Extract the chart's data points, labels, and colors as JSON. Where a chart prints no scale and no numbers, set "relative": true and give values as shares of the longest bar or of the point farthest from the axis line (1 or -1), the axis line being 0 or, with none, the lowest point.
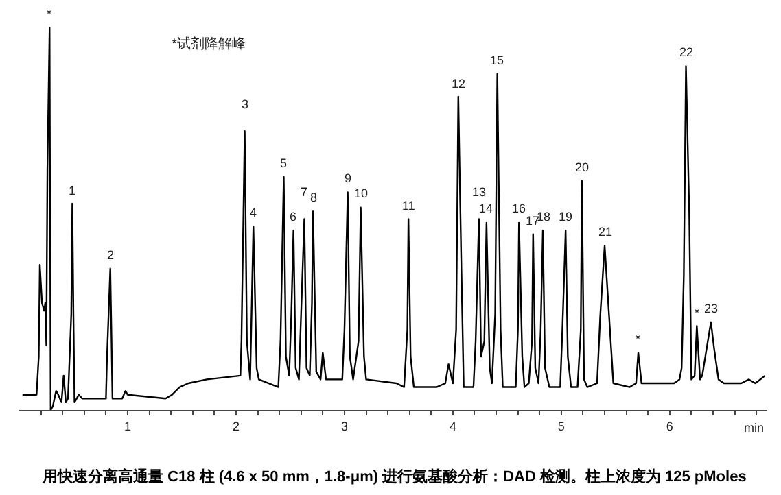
{
  "chart_data": {
    "type": "line",
    "relative": true,
    "xlabel": "min",
    "grid": false,
    "marker": "none",
    "line_style": "solid",
    "xlim": [
      0,
      6.9
    ],
    "xticks": [
      {
        "value": 0.2,
        "label": null
      },
      {
        "value": 0.4,
        "label": null
      },
      {
        "value": 0.6,
        "label": null
      },
      {
        "value": 0.8,
        "label": null
      },
      1,
      {
        "value": 1.2,
        "label": null
      },
      {
        "value": 1.4,
        "label": null
      },
      {
        "value": 1.6,
        "label": null
      },
      {
        "value": 1.8,
        "label": null
      },
      2,
      {
        "value": 2.2,
        "label": null
      },
      {
        "value": 2.4,
        "label": null
      },
      {
        "value": 2.6,
        "label": null
      },
      {
        "value": 2.8,
        "label": null
      },
      3,
      {
        "value": 3.2,
        "label": null
      },
      {
        "value": 3.4,
        "label": null
      },
      {
        "value": 3.6,
        "label": null
      },
      {
        "value": 3.8,
        "label": null
      },
      4,
      {
        "value": 4.2,
        "label": null
      },
      {
        "value": 4.4,
        "label": null
      },
      {
        "value": 4.6,
        "label": null
      },
      {
        "value": 4.8,
        "label": null
      },
      5,
      {
        "value": 5.2,
        "label": null
      },
      {
        "value": 5.4,
        "label": null
      },
      {
        "value": 5.6,
        "label": null
      },
      {
        "value": 5.8,
        "label": null
      },
      6,
      {
        "value": 6.2,
        "label": null
      },
      {
        "value": 6.4,
        "label": null
      },
      {
        "value": 6.6,
        "label": null
      },
      {
        "value": 6.8,
        "label": null
      }
    ],
    "x": [
      0.03,
      0.16,
      0.18,
      0.19,
      0.21,
      0.23,
      0.24,
      0.25,
      0.26,
      0.28,
      0.29,
      0.31,
      0.34,
      0.36,
      0.39,
      0.41,
      0.43,
      0.45,
      0.48,
      0.49,
      0.5,
      0.51,
      0.55,
      0.58,
      0.73,
      0.8,
      0.81,
      0.84,
      0.85,
      0.86,
      0.95,
      0.98,
      1.0,
      1.35,
      1.41,
      1.48,
      1.56,
      1.73,
      2.04,
      2.05,
      2.08,
      2.1,
      2.13,
      2.14,
      2.16,
      2.19,
      2.21,
      2.39,
      2.41,
      2.44,
      2.46,
      2.49,
      2.51,
      2.53,
      2.55,
      2.58,
      2.6,
      2.63,
      2.65,
      2.68,
      2.7,
      2.71,
      2.74,
      2.78,
      2.8,
      2.83,
      2.98,
      3.0,
      3.03,
      3.05,
      3.08,
      3.13,
      3.15,
      3.18,
      3.2,
      3.48,
      3.55,
      3.58,
      3.59,
      3.61,
      3.64,
      3.85,
      3.93,
      3.96,
      4.0,
      4.03,
      4.05,
      4.08,
      4.1,
      4.19,
      4.21,
      4.24,
      4.26,
      4.29,
      4.31,
      4.34,
      4.36,
      4.39,
      4.41,
      4.44,
      4.46,
      4.58,
      4.6,
      4.61,
      4.64,
      4.66,
      4.7,
      4.73,
      4.74,
      4.76,
      4.79,
      4.81,
      4.83,
      4.85,
      4.89,
      4.99,
      5.01,
      5.04,
      5.06,
      5.09,
      5.15,
      5.18,
      5.19,
      5.21,
      5.24,
      5.33,
      5.36,
      5.4,
      5.44,
      5.48,
      5.63,
      5.69,
      5.71,
      5.74,
      6.04,
      6.09,
      6.11,
      6.13,
      6.15,
      6.18,
      6.2,
      6.23,
      6.25,
      6.28,
      6.3,
      6.34,
      6.38,
      6.41,
      6.45,
      6.5,
      6.66,
      6.73,
      6.79,
      6.88
    ],
    "series": [
      {
        "color": "#000000",
        "values": [
          0.04,
          0.04,
          0.14,
          0.38,
          0.28,
          0.26,
          0.28,
          0.17,
          0.63,
          1.0,
          0,
          0.01,
          0.05,
          0.04,
          0.02,
          0.09,
          0.02,
          0.03,
          0.25,
          0.54,
          0.25,
          0.02,
          0.04,
          0.03,
          0.03,
          0.03,
          0.14,
          0.37,
          0.21,
          0.03,
          0.03,
          0.05,
          0.04,
          0.03,
          0.04,
          0.06,
          0.07,
          0.08,
          0.09,
          0.18,
          0.73,
          0.18,
          0.08,
          0.21,
          0.48,
          0.11,
          0.08,
          0.06,
          0.18,
          0.61,
          0.14,
          0.09,
          0.25,
          0.47,
          0.11,
          0.08,
          0.25,
          0.5,
          0.11,
          0.09,
          0.28,
          0.52,
          0.1,
          0.08,
          0.15,
          0.08,
          0.08,
          0.21,
          0.57,
          0.14,
          0.08,
          0.18,
          0.53,
          0.14,
          0.08,
          0.07,
          0.06,
          0.21,
          0.5,
          0.14,
          0.06,
          0.06,
          0.07,
          0.12,
          0.07,
          0.21,
          0.82,
          0.35,
          0.06,
          0.06,
          0.18,
          0.5,
          0.14,
          0.18,
          0.49,
          0.11,
          0.07,
          0.25,
          0.88,
          0.21,
          0.06,
          0.06,
          0.21,
          0.49,
          0.14,
          0.06,
          0.07,
          0.18,
          0.46,
          0.11,
          0.07,
          0.21,
          0.47,
          0.11,
          0.06,
          0.06,
          0.21,
          0.47,
          0.14,
          0.06,
          0.06,
          0.21,
          0.6,
          0.08,
          0.06,
          0.07,
          0.25,
          0.43,
          0.25,
          0.07,
          0.06,
          0.07,
          0.15,
          0.07,
          0.07,
          0.08,
          0.11,
          0.35,
          0.9,
          0.52,
          0.08,
          0.09,
          0.22,
          0.08,
          0.09,
          0.16,
          0.23,
          0.16,
          0.08,
          0.07,
          0.07,
          0.08,
          0.07,
          0.09
        ]
      }
    ],
    "annotations": [
      "*试剂降解峰",
      {
        "text": "*",
        "x": 0.28,
        "y": 1.0
      },
      {
        "text": "1",
        "x": 0.49,
        "y": 0.54
      },
      {
        "text": "2",
        "x": 0.84,
        "y": 0.37
      },
      {
        "text": "3",
        "x": 2.08,
        "y": 0.73
      },
      {
        "text": "4",
        "x": 2.16,
        "y": 0.48
      },
      {
        "text": "5",
        "x": 2.44,
        "y": 0.61
      },
      {
        "text": "6",
        "x": 2.53,
        "y": 0.47
      },
      {
        "text": "7",
        "x": 2.63,
        "y": 0.5
      },
      {
        "text": "8",
        "x": 2.71,
        "y": 0.52
      },
      {
        "text": "9",
        "x": 3.03,
        "y": 0.57
      },
      {
        "text": "10",
        "x": 3.15,
        "y": 0.53
      },
      {
        "text": "11",
        "x": 3.59,
        "y": 0.5
      },
      {
        "text": "12",
        "x": 4.05,
        "y": 0.82
      },
      {
        "text": "13",
        "x": 4.24,
        "y": 0.5
      },
      {
        "text": "14",
        "x": 4.31,
        "y": 0.49
      },
      {
        "text": "15",
        "x": 4.41,
        "y": 0.88
      },
      {
        "text": "16",
        "x": 4.61,
        "y": 0.49
      },
      {
        "text": "17",
        "x": 4.74,
        "y": 0.46
      },
      {
        "text": "18",
        "x": 4.83,
        "y": 0.47
      },
      {
        "text": "19",
        "x": 5.04,
        "y": 0.47
      },
      {
        "text": "20",
        "x": 5.19,
        "y": 0.6
      },
      {
        "text": "21",
        "x": 5.4,
        "y": 0.43
      },
      {
        "text": "*",
        "x": 5.71,
        "y": 0.15
      },
      {
        "text": "22",
        "x": 6.15,
        "y": 0.9
      },
      {
        "text": "*",
        "x": 6.25,
        "y": 0.22
      },
      {
        "text": "23",
        "x": 6.38,
        "y": 0.23
      },
      "用快速分离高通量 C18 柱 (4.6 x 50 mm，1.8-μm) 进行氨基酸分析：DAD 检测。柱上浓度为 125 pMoles"
    ]
  }
}
